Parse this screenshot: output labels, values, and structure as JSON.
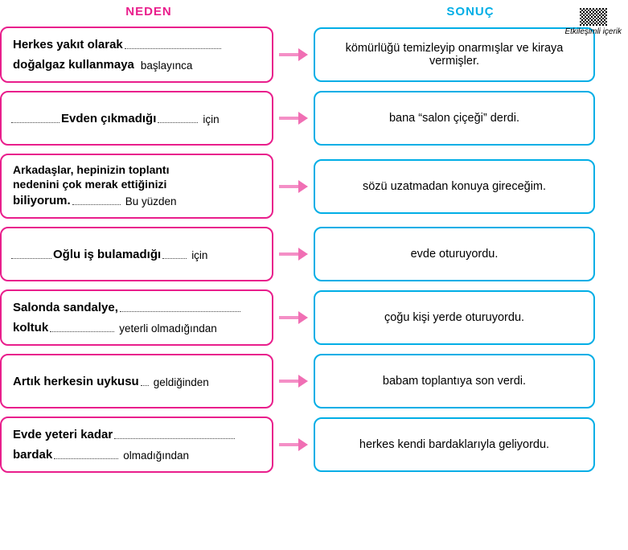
{
  "qr_label": "Etkileşimli\niçerik",
  "headers": {
    "left": "NEDEN",
    "right": "SONUÇ"
  },
  "colors": {
    "neden_border": "#e91e8c",
    "sonuc_border": "#00aee6",
    "arrow_fill": "#f48fc6",
    "arrow_head": "#f06fb4",
    "dot_color": "#444444"
  },
  "rows": [
    {
      "neden_lines": [
        {
          "left_dots": 0,
          "filled": "Herkes yakıt olarak",
          "right_dots": 120
        },
        {
          "left_dots": 0,
          "filled": "doğalgaz kullanmaya",
          "connector": "başlayınca",
          "right_dots": 0
        }
      ],
      "sonuc": "kömürlüğü temizleyip onarmışlar ve kiraya vermişler."
    },
    {
      "neden_lines": [
        {
          "left_dots": 60,
          "filled": "Evden çıkmadığı",
          "right_dots": 50,
          "connector": "için"
        }
      ],
      "sonuc": "bana “salon çiçeği” derdi."
    },
    {
      "neden_lines": [
        {
          "plain": "Arkadaşlar, hepinizin toplantı",
          "bold": true
        },
        {
          "plain": "nedenini çok merak ettiğinizi",
          "bold": true
        },
        {
          "left_dots": 0,
          "filled": "biliyorum.",
          "right_dots": 60,
          "connector": "Bu yüzden"
        }
      ],
      "sonuc": "sözü uzatmadan konuya gireceğim."
    },
    {
      "neden_lines": [
        {
          "left_dots": 50,
          "filled": "Oğlu iş bulamadığı",
          "right_dots": 30,
          "connector": "için"
        }
      ],
      "sonuc": "evde oturuyordu."
    },
    {
      "neden_lines": [
        {
          "left_dots": 0,
          "filled": "Salonda sandalye,",
          "right_dots": 150
        },
        {
          "left_dots": 0,
          "filled": "koltuk",
          "right_dots": 80,
          "connector": "yeterli olmadığından"
        }
      ],
      "sonuc": "çoğu kişi yerde oturuyordu."
    },
    {
      "neden_lines": [
        {
          "left_dots": 0,
          "filled": "Artık herkesin uykusu",
          "right_dots": 10,
          "connector": "geldiğinden"
        }
      ],
      "sonuc": "babam toplantıya son verdi."
    },
    {
      "neden_lines": [
        {
          "left_dots": 0,
          "filled": "Evde yeteri kadar",
          "right_dots": 150
        },
        {
          "left_dots": 0,
          "filled": "bardak",
          "right_dots": 80,
          "connector": "olmadığından"
        }
      ],
      "sonuc": "herkes kendi bardaklarıyla geliyordu."
    }
  ]
}
